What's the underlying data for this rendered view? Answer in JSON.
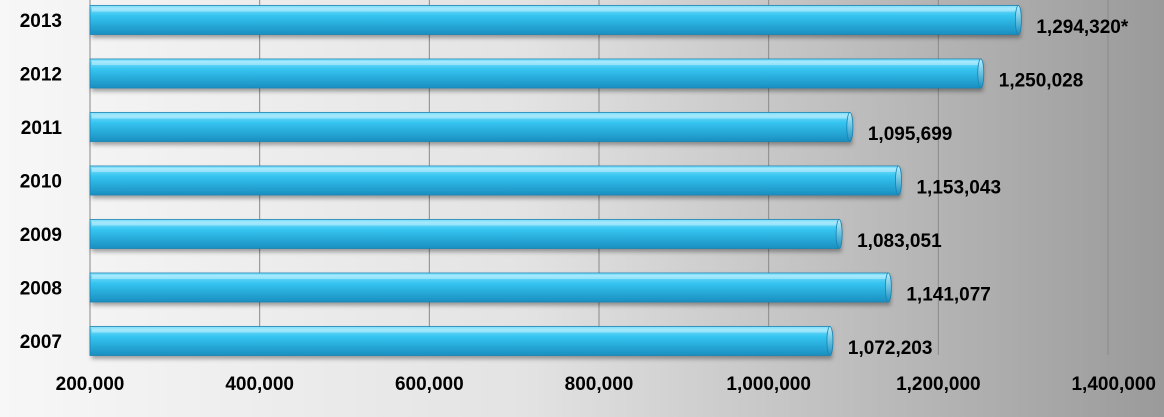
{
  "chart_data": {
    "type": "bar",
    "orientation": "horizontal",
    "categories": [
      "2013",
      "2012",
      "2011",
      "2010",
      "2009",
      "2008",
      "2007"
    ],
    "values": [
      1294320,
      1250028,
      1095699,
      1153043,
      1083051,
      1141077,
      1072203
    ],
    "data_labels": [
      "1,294,320*",
      "1,250,028",
      "1,095,699",
      "1,153,043",
      "1,083,051",
      "1,141,077",
      "1,072,203"
    ],
    "xlim": [
      200000,
      1400000
    ],
    "x_ticks": [
      200000,
      400000,
      600000,
      800000,
      1000000,
      1200000,
      1400000
    ],
    "x_tick_labels": [
      "200,000",
      "400,000",
      "600,000",
      "800,000",
      "1,000,000",
      "1,200,000",
      "1,400,000"
    ],
    "grid": true,
    "colors": {
      "bar_light": "#8fe6ff",
      "bar_main": "#35c4f0",
      "bar_dark": "#1a8fc0",
      "gridline": "#8a8a8a"
    }
  }
}
